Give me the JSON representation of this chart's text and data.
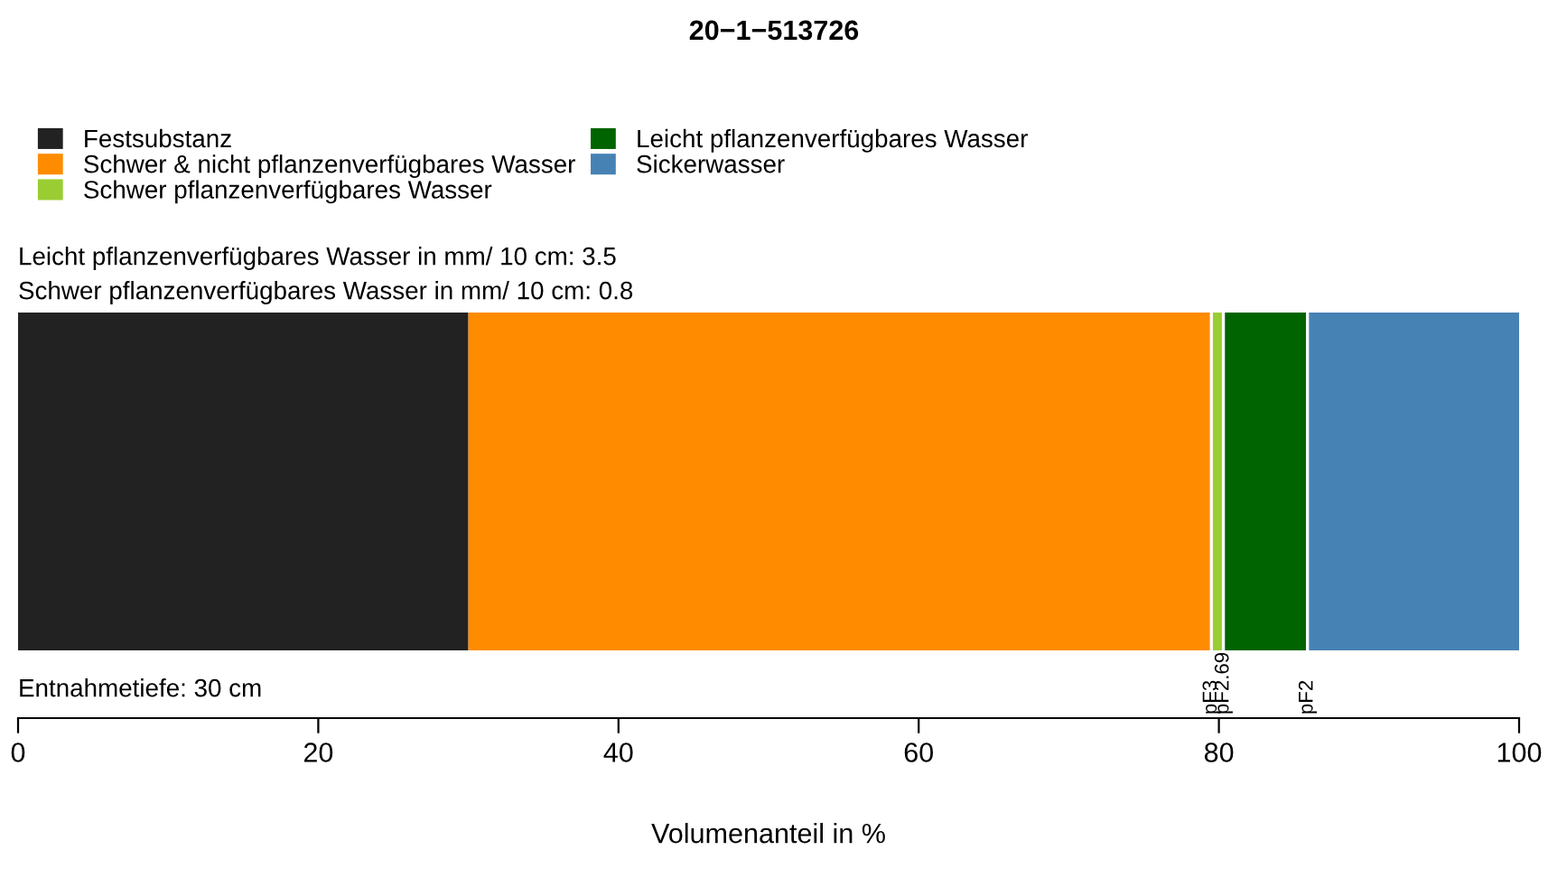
{
  "chart_data": {
    "type": "bar",
    "orientation": "horizontal",
    "stacked": true,
    "title": "20−1−513726",
    "xlabel": "Volumenanteil in %",
    "categories": [
      null
    ],
    "series": [
      {
        "name": "Festsubstanz",
        "color": "#222222",
        "values": [
          30.0
        ]
      },
      {
        "name": "Schwer & nicht pflanzenverfügbares Wasser",
        "color": "#ff8c00",
        "values": [
          49.5
        ]
      },
      {
        "name": "Schwer pflanzenverfügbares Wasser",
        "color": "#9acd32",
        "values": [
          0.8
        ]
      },
      {
        "name": "Leicht pflanzenverfügbares Wasser",
        "color": "#006400",
        "values": [
          5.6
        ]
      },
      {
        "name": "Sickerwasser",
        "color": "#4682b4",
        "values": [
          14.1
        ]
      }
    ],
    "xlim": [
      0,
      100
    ],
    "xticks": [
      0,
      20,
      40,
      60,
      80,
      100
    ],
    "legend": "top left",
    "grid": false,
    "annotations": [
      "Leicht pflanzenverfügbares Wasser in mm/ 10 cm: 3.5",
      "Schwer pflanzenverfügbares Wasser in mm/ 10 cm: 0.8",
      "Entnahmetiefe: 30 cm"
    ],
    "ref_lines": [
      {
        "axis": "x",
        "value": 79.5,
        "label": "pF3",
        "color": "#ffffff"
      },
      {
        "axis": "x",
        "value": 80.3,
        "label": "pF2.69",
        "color": "#ffffff"
      },
      {
        "axis": "x",
        "value": 85.9,
        "label": "pF2",
        "color": "#ffffff"
      }
    ]
  }
}
